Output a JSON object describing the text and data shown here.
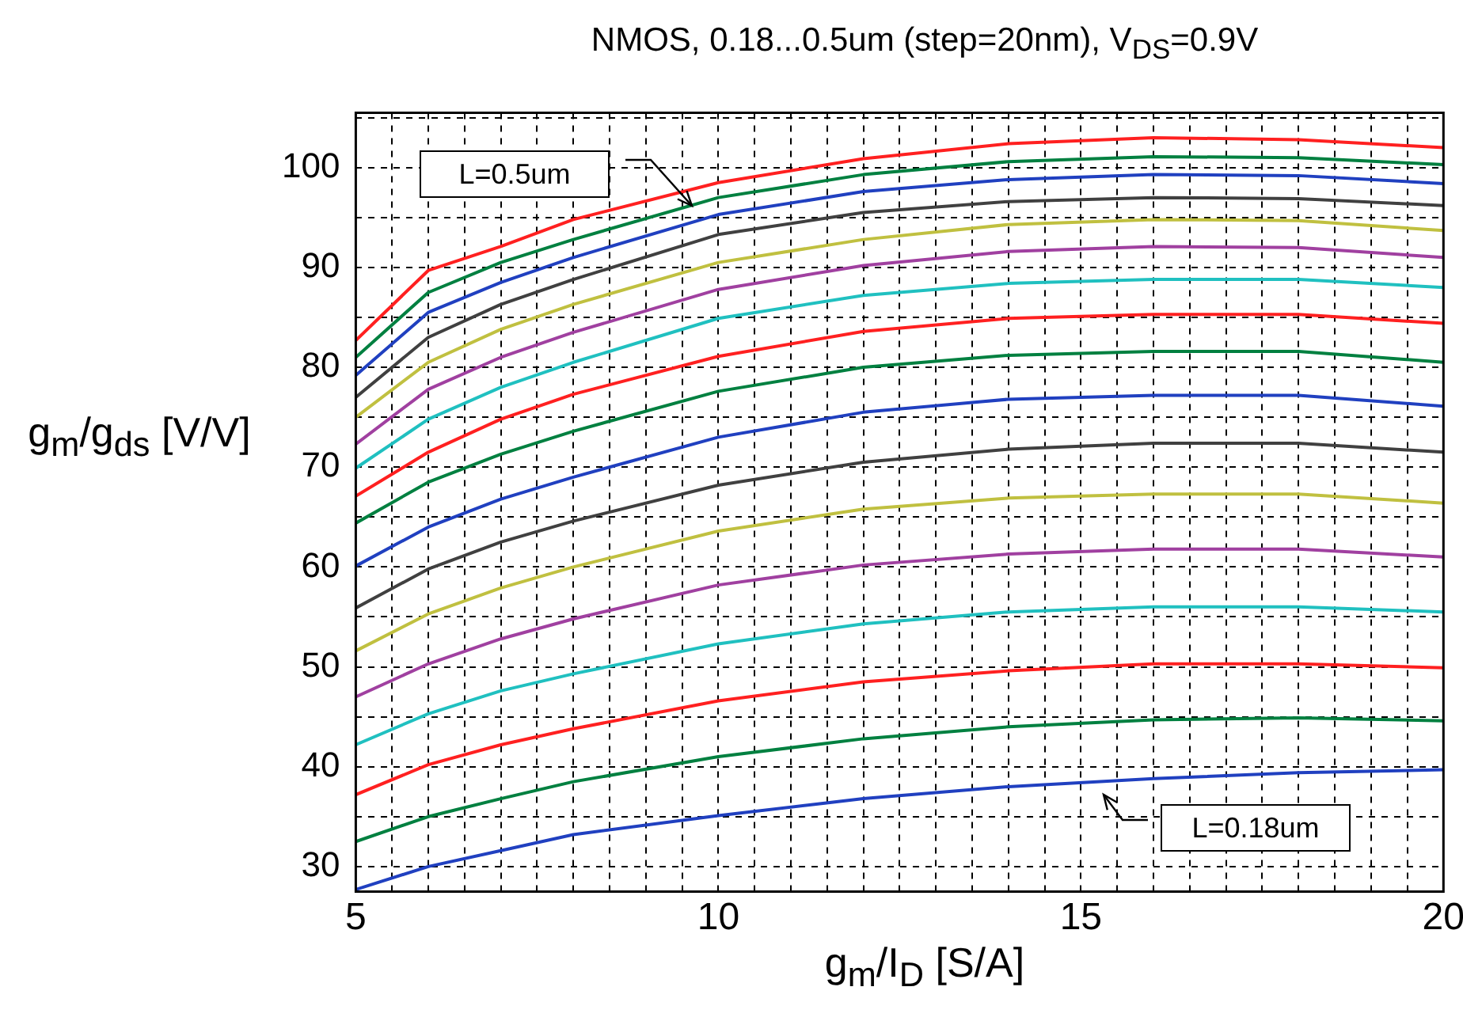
{
  "chart_data": {
    "type": "line",
    "title": "NMOS, 0.18...0.5um (step=20nm), V$_{DS}$=0.9V",
    "xlabel": "g$_{m}$/I$_{D}$  [S/A]",
    "ylabel": "g$_{m}$/g$_{ds}$ [V/V]",
    "x": [
      5,
      6,
      7,
      8,
      10,
      12,
      14,
      16,
      18,
      20
    ],
    "series": [
      {
        "color": "#ff2020",
        "values": [
          82.7,
          89.7,
          92.1,
          94.8,
          98.5,
          100.9,
          102.4,
          103.0,
          102.8,
          102.0
        ]
      },
      {
        "color": "#008040",
        "values": [
          81.0,
          87.5,
          90.5,
          92.8,
          97.0,
          99.3,
          100.6,
          101.1,
          101.0,
          100.3
        ]
      },
      {
        "color": "#2040c0",
        "values": [
          79.2,
          85.5,
          88.5,
          91.0,
          95.3,
          97.6,
          98.8,
          99.3,
          99.2,
          98.4
        ]
      },
      {
        "color": "#404040",
        "values": [
          77.0,
          83.0,
          86.3,
          88.8,
          93.3,
          95.5,
          96.6,
          97.0,
          96.9,
          96.2
        ]
      },
      {
        "color": "#c0c040",
        "values": [
          75.0,
          80.5,
          83.8,
          86.3,
          90.5,
          92.8,
          94.3,
          94.8,
          94.7,
          93.7
        ]
      },
      {
        "color": "#a040a0",
        "values": [
          72.3,
          77.8,
          81.0,
          83.5,
          87.8,
          90.2,
          91.6,
          92.1,
          92.0,
          91.0
        ]
      },
      {
        "color": "#20c0c0",
        "values": [
          69.9,
          74.8,
          78.0,
          80.5,
          84.9,
          87.2,
          88.4,
          88.8,
          88.8,
          88.0
        ]
      },
      {
        "color": "#ff2020",
        "values": [
          67.1,
          71.5,
          74.8,
          77.3,
          81.1,
          83.6,
          84.9,
          85.3,
          85.3,
          84.4
        ]
      },
      {
        "color": "#008040",
        "values": [
          64.4,
          68.5,
          71.3,
          73.6,
          77.6,
          80.0,
          81.2,
          81.6,
          81.6,
          80.5
        ]
      },
      {
        "color": "#2040c0",
        "values": [
          60.1,
          64.0,
          66.8,
          69.0,
          73.0,
          75.5,
          76.8,
          77.2,
          77.2,
          76.1
        ]
      },
      {
        "color": "#404040",
        "values": [
          55.9,
          59.8,
          62.5,
          64.6,
          68.2,
          70.5,
          71.8,
          72.4,
          72.4,
          71.5
        ]
      },
      {
        "color": "#c0c040",
        "values": [
          51.6,
          55.3,
          57.9,
          60.0,
          63.6,
          65.8,
          66.9,
          67.3,
          67.3,
          66.4
        ]
      },
      {
        "color": "#a040a0",
        "values": [
          47.0,
          50.3,
          52.8,
          54.8,
          58.2,
          60.2,
          61.3,
          61.8,
          61.8,
          61.0
        ]
      },
      {
        "color": "#20c0c0",
        "values": [
          42.2,
          45.3,
          47.6,
          49.3,
          52.3,
          54.3,
          55.5,
          56.0,
          56.0,
          55.5
        ]
      },
      {
        "color": "#ff2020",
        "values": [
          37.2,
          40.2,
          42.2,
          43.8,
          46.6,
          48.5,
          49.6,
          50.3,
          50.3,
          49.9
        ]
      },
      {
        "color": "#008040",
        "values": [
          32.5,
          35.0,
          36.8,
          38.5,
          41.0,
          42.8,
          44.0,
          44.7,
          44.9,
          44.6
        ]
      },
      {
        "color": "#2040c0",
        "values": [
          27.7,
          30.0,
          31.6,
          33.2,
          35.1,
          36.8,
          38.0,
          38.8,
          39.4,
          39.7
        ]
      }
    ],
    "xlim": [
      5,
      20
    ],
    "xticks": [
      5,
      {
        "value": 5.5,
        "label": null
      },
      {
        "value": 6,
        "label": null
      },
      {
        "value": 6.5,
        "label": null
      },
      {
        "value": 7,
        "label": null
      },
      {
        "value": 7.5,
        "label": null
      },
      {
        "value": 8,
        "label": null
      },
      {
        "value": 8.5,
        "label": null
      },
      {
        "value": 9,
        "label": null
      },
      {
        "value": 9.5,
        "label": null
      },
      10,
      {
        "value": 10.5,
        "label": null
      },
      {
        "value": 11,
        "label": null
      },
      {
        "value": 11.5,
        "label": null
      },
      {
        "value": 12,
        "label": null
      },
      {
        "value": 12.5,
        "label": null
      },
      {
        "value": 13,
        "label": null
      },
      {
        "value": 13.5,
        "label": null
      },
      {
        "value": 14,
        "label": null
      },
      {
        "value": 14.5,
        "label": null
      },
      15,
      {
        "value": 15.5,
        "label": null
      },
      {
        "value": 16,
        "label": null
      },
      {
        "value": 16.5,
        "label": null
      },
      {
        "value": 17,
        "label": null
      },
      {
        "value": 17.5,
        "label": null
      },
      {
        "value": 18,
        "label": null
      },
      {
        "value": 18.5,
        "label": null
      },
      {
        "value": 19,
        "label": null
      },
      {
        "value": 19.5,
        "label": null
      },
      20
    ],
    "ylim": [
      27.5,
      105.5
    ],
    "yticks": [
      30,
      {
        "value": 35,
        "label": null
      },
      40,
      {
        "value": 45,
        "label": null
      },
      50,
      {
        "value": 55,
        "label": null
      },
      60,
      {
        "value": 65,
        "label": null
      },
      70,
      {
        "value": 75,
        "label": null
      },
      80,
      {
        "value": 85,
        "label": null
      },
      90,
      {
        "value": 95,
        "label": null
      },
      100,
      {
        "value": 105,
        "label": null
      }
    ],
    "grid": true,
    "annotations": [
      "L=0.5um",
      "L=0.18um"
    ]
  }
}
